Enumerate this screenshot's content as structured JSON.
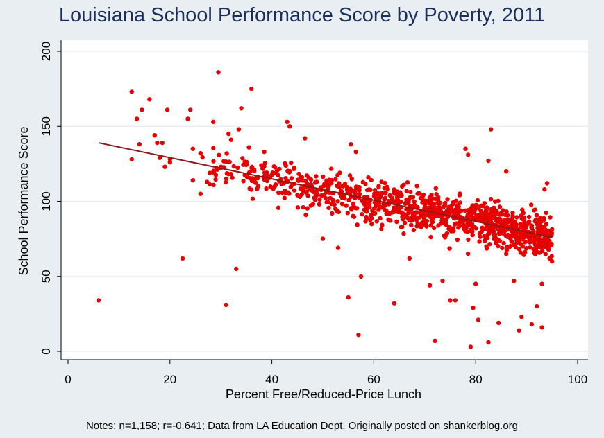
{
  "chart_data": {
    "type": "scatter",
    "title": "Louisiana School Performance Score by Poverty, 2011",
    "xlabel": "Percent Free/Reduced-Price Lunch",
    "ylabel": "School Performance Score",
    "xlim": [
      0,
      100
    ],
    "ylim": [
      0,
      200
    ],
    "xticks": [
      0,
      20,
      40,
      60,
      80,
      100
    ],
    "yticks": [
      0,
      50,
      100,
      150,
      200
    ],
    "grid": true,
    "point_color": "#e60000",
    "fit_line_color": "#8b1a1a",
    "fit_line": {
      "x": [
        6,
        95
      ],
      "y": [
        139,
        76
      ]
    },
    "n_points": 1158,
    "highlighted_points": [
      {
        "x": 6,
        "y": 34
      },
      {
        "x": 12.5,
        "y": 173
      },
      {
        "x": 12.5,
        "y": 128
      },
      {
        "x": 13.5,
        "y": 155
      },
      {
        "x": 14,
        "y": 138
      },
      {
        "x": 14.5,
        "y": 161
      },
      {
        "x": 16,
        "y": 168
      },
      {
        "x": 17,
        "y": 144
      },
      {
        "x": 17.5,
        "y": 139
      },
      {
        "x": 18.5,
        "y": 139
      },
      {
        "x": 18,
        "y": 129
      },
      {
        "x": 19,
        "y": 123
      },
      {
        "x": 19.5,
        "y": 161
      },
      {
        "x": 20,
        "y": 128
      },
      {
        "x": 20,
        "y": 126
      },
      {
        "x": 22.5,
        "y": 62
      },
      {
        "x": 23.5,
        "y": 155
      },
      {
        "x": 24,
        "y": 161
      },
      {
        "x": 24.5,
        "y": 135
      },
      {
        "x": 24.5,
        "y": 114
      },
      {
        "x": 26,
        "y": 105
      },
      {
        "x": 26,
        "y": 132
      },
      {
        "x": 28.5,
        "y": 153
      },
      {
        "x": 29.5,
        "y": 186
      },
      {
        "x": 30,
        "y": 123
      },
      {
        "x": 31,
        "y": 31
      },
      {
        "x": 31.5,
        "y": 145
      },
      {
        "x": 32,
        "y": 141
      },
      {
        "x": 33,
        "y": 55
      },
      {
        "x": 33.5,
        "y": 148
      },
      {
        "x": 34,
        "y": 162
      },
      {
        "x": 36,
        "y": 175
      },
      {
        "x": 35.5,
        "y": 136
      },
      {
        "x": 38.5,
        "y": 133
      },
      {
        "x": 43,
        "y": 153
      },
      {
        "x": 43.5,
        "y": 150
      },
      {
        "x": 46.5,
        "y": 142
      },
      {
        "x": 50,
        "y": 75
      },
      {
        "x": 53,
        "y": 69
      },
      {
        "x": 55,
        "y": 36
      },
      {
        "x": 55.5,
        "y": 138
      },
      {
        "x": 56.5,
        "y": 133
      },
      {
        "x": 57,
        "y": 11
      },
      {
        "x": 57.5,
        "y": 50
      },
      {
        "x": 64,
        "y": 32
      },
      {
        "x": 67,
        "y": 62
      },
      {
        "x": 71,
        "y": 44
      },
      {
        "x": 72,
        "y": 7
      },
      {
        "x": 73.5,
        "y": 47
      },
      {
        "x": 75,
        "y": 34
      },
      {
        "x": 76,
        "y": 34
      },
      {
        "x": 78,
        "y": 135
      },
      {
        "x": 78.5,
        "y": 131
      },
      {
        "x": 79,
        "y": 3
      },
      {
        "x": 79.5,
        "y": 29
      },
      {
        "x": 80.5,
        "y": 21
      },
      {
        "x": 80,
        "y": 45
      },
      {
        "x": 82.5,
        "y": 6
      },
      {
        "x": 82.5,
        "y": 127
      },
      {
        "x": 83,
        "y": 148
      },
      {
        "x": 84.5,
        "y": 19
      },
      {
        "x": 86,
        "y": 120
      },
      {
        "x": 87.5,
        "y": 47
      },
      {
        "x": 88.5,
        "y": 14
      },
      {
        "x": 89,
        "y": 23
      },
      {
        "x": 91,
        "y": 18
      },
      {
        "x": 92,
        "y": 30
      },
      {
        "x": 93,
        "y": 16
      },
      {
        "x": 93.5,
        "y": 108
      },
      {
        "x": 94,
        "y": 112
      },
      {
        "x": 93,
        "y": 45
      },
      {
        "x": 94.5,
        "y": 62
      }
    ]
  },
  "footnote": "Notes: n=1,158; r=-0.641; Data from LA Education Dept. Originally posted on shankerblog.org"
}
